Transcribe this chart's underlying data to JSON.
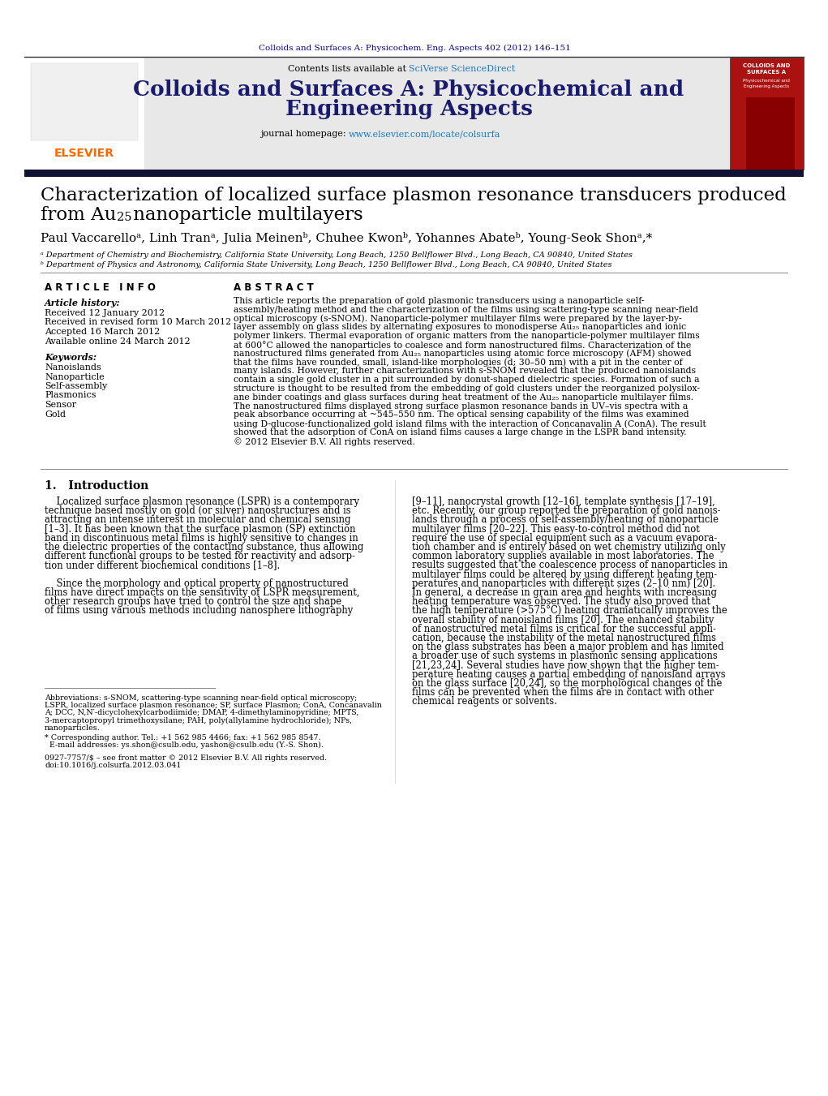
{
  "page_bg": "#ffffff",
  "header_journal_line": "Colloids and Surfaces A: Physicochem. Eng. Aspects 402 (2012) 146–151",
  "header_journal_color": "#00008B",
  "journal_banner_bg": "#E8E8E8",
  "journal_title_line1": "Colloids and Surfaces A: Physicochemical and",
  "journal_title_line2": "Engineering Aspects",
  "journal_title_color": "#1a1a6e",
  "sciverse_color": "#1a7abf",
  "homepage_link_color": "#1a7abf",
  "elsevier_color": "#FF6600",
  "paper_title_line1": "Characterization of localized surface plasmon resonance transducers produced",
  "paper_title_line2_pre": "from Au",
  "paper_title_sub": "25",
  "paper_title_line2_post": " nanoparticle multilayers",
  "authors_line": "Paul Vaccarelloᵃ, Linh Tranᵃ, Julia Meinenᵇ, Chuhee Kwonᵇ, Yohannes Abateᵇ, Young-Seok Shonᵃ,*",
  "affil_a": "ᵃ Department of Chemistry and Biochemistry, California State University, Long Beach, 1250 Bellflower Blvd., Long Beach, CA 90840, United States",
  "affil_b": "ᵇ Department of Physics and Astronomy, California State University, Long Beach, 1250 Bellflower Blvd., Long Beach, CA 90840, United States",
  "article_info_header": "A R T I C L E   I N F O",
  "abstract_header": "A B S T R A C T",
  "article_history_label": "Article history:",
  "received": "Received 12 January 2012",
  "revised": "Received in revised form 10 March 2012",
  "accepted": "Accepted 16 March 2012",
  "available": "Available online 24 March 2012",
  "keywords_label": "Keywords:",
  "keywords": [
    "Nanoislands",
    "Nanoparticle",
    "Self-assembly",
    "Plasmonics",
    "Sensor",
    "Gold"
  ],
  "abstract_lines": [
    "This article reports the preparation of gold plasmonic transducers using a nanoparticle self-",
    "assembly/heating method and the characterization of the films using scattering-type scanning near-field",
    "optical microscopy (s-SNOM). Nanoparticle-polymer multilayer films were prepared by the layer-by-",
    "layer assembly on glass slides by alternating exposures to monodisperse Au₂₅ nanoparticles and ionic",
    "polymer linkers. Thermal evaporation of organic matters from the nanoparticle-polymer multilayer films",
    "at 600°C allowed the nanoparticles to coalesce and form nanostructured films. Characterization of the",
    "nanostructured films generated from Au₂₅ nanoparticles using atomic force microscopy (AFM) showed",
    "that the films have rounded, small, island-like morphologies (d; 30–50 nm) with a pit in the center of",
    "many islands. However, further characterizations with s-SNOM revealed that the produced nanoislands",
    "contain a single gold cluster in a pit surrounded by donut-shaped dielectric species. Formation of such a",
    "structure is thought to be resulted from the embedding of gold clusters under the reorganized polysilox-",
    "ane binder coatings and glass surfaces during heat treatment of the Au₂₅ nanoparticle multilayer films.",
    "The nanostructured films displayed strong surface plasmon resonance bands in UV–vis spectra with a",
    "peak absorbance occurring at ~545–550 nm. The optical sensing capability of the films was examined",
    "using D-glucose-functionalized gold island films with the interaction of Concanavalin A (ConA). The result",
    "showed that the adsorption of ConA on island films causes a large change in the LSPR band intensity.",
    "© 2012 Elsevier B.V. All rights reserved."
  ],
  "intro_header": "1.   Introduction",
  "intro_left_lines": [
    "    Localized surface plasmon resonance (LSPR) is a contemporary",
    "technique based mostly on gold (or silver) nanostructures and is",
    "attracting an intense interest in molecular and chemical sensing",
    "[1–3]. It has been known that the surface plasmon (SP) extinction",
    "band in discontinuous metal films is highly sensitive to changes in",
    "the dielectric properties of the contacting substance, thus allowing",
    "different functional groups to be tested for reactivity and adsorp-",
    "tion under different biochemical conditions [1–8].",
    "",
    "    Since the morphology and optical property of nanostructured",
    "films have direct impacts on the sensitivity of LSPR measurement,",
    "other research groups have tried to control the size and shape",
    "of films using various methods including nanosphere lithography"
  ],
  "intro_right_lines": [
    "[9–11], nanocrystal growth [12–16], template synthesis [17–19],",
    "etc. Recently, our group reported the preparation of gold nanois-",
    "lands through a process of self-assembly/heating of nanoparticle",
    "multilayer films [20–22]. This easy-to-control method did not",
    "require the use of special equipment such as a vacuum evapora-",
    "tion chamber and is entirely based on wet chemistry utilizing only",
    "common laboratory supplies available in most laboratories. The",
    "results suggested that the coalescence process of nanoparticles in",
    "multilayer films could be altered by using different heating tem-",
    "peratures and nanoparticles with different sizes (2–10 nm) [20].",
    "In general, a decrease in grain area and heights with increasing",
    "heating temperature was observed. The study also proved that",
    "the high temperature (>575°C) heating dramatically improves the",
    "overall stability of nanoisland films [20]. The enhanced stability",
    "of nanostructured metal films is critical for the successful appli-",
    "cation, because the instability of the metal nanostructured films",
    "on the glass substrates has been a major problem and has limited",
    "a broader use of such systems in plasmonic sensing applications",
    "[21,23,24]. Several studies have now shown that the higher tem-",
    "perature heating causes a partial embedding of nanoisland arrays",
    "on the glass surface [20,24], so the morphological changes of the",
    "films can be prevented when the films are in contact with other",
    "chemical reagents or solvents."
  ],
  "footnote_lines": [
    "Abbreviations: s-SNOM, scattering-type scanning near-field optical microscopy;",
    "LSPR, localized surface plasmon resonance; SP, surface Plasmon; ConA, Concanavalin",
    "A; DCC, N,N′-dicyclohexylcarbodiimide; DMAP, 4-dimethylaminopyridine; MPTS,",
    "3-mercaptopropyl trimethoxysilane; PAH, poly(allylamine hydrochloride); NPs,",
    "nanoparticles."
  ],
  "corresponding_line1": "* Corresponding author. Tel.: +1 562 985 4466; fax: +1 562 985 8547.",
  "corresponding_line2": "  E-mail addresses: ys.shon@csulb.edu, yashon@csulb.edu (Y.-S. Shon).",
  "issn_line1": "0927-7757/$ – see front matter © 2012 Elsevier B.V. All rights reserved.",
  "issn_line2": "doi:10.1016/j.colsurfa.2012.03.041"
}
